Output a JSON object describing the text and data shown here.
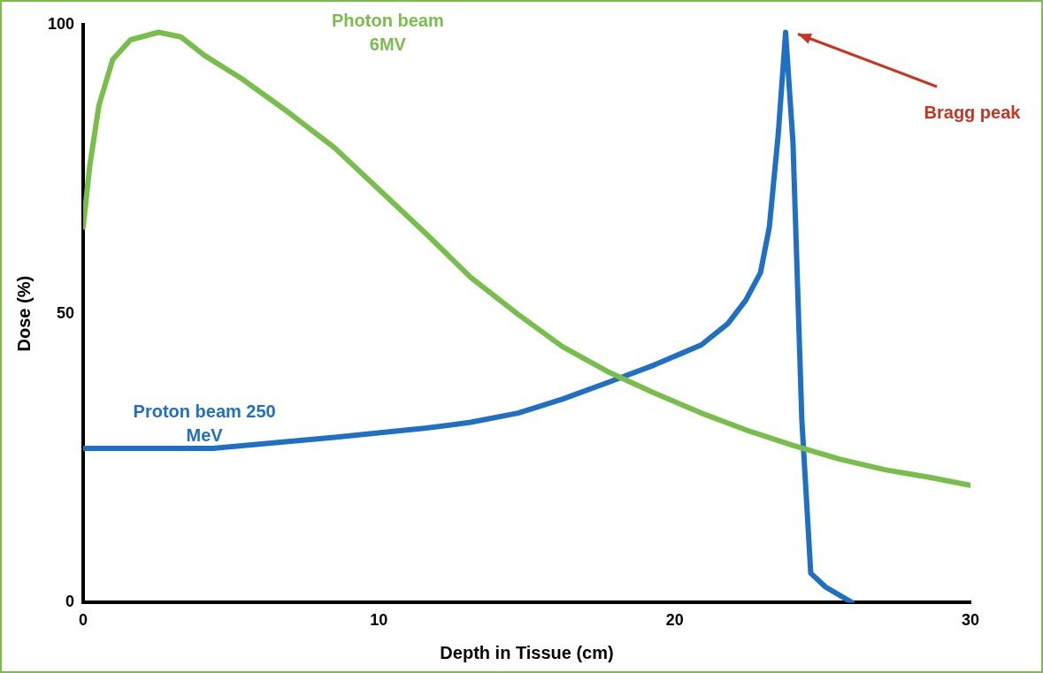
{
  "chart_data": {
    "type": "line",
    "xlabel": "Depth in Tissue (cm)",
    "ylabel": "Dose (%)",
    "xlim": [
      0,
      30
    ],
    "ylim": [
      0,
      100
    ],
    "xticks": [
      0,
      10,
      20,
      30
    ],
    "yticks": [
      0,
      50,
      100
    ],
    "grid": false,
    "legend": false,
    "series": [
      {
        "name": "Photon beam 6MV",
        "color": "#78be4a",
        "x": [
          0,
          0.22,
          0.53,
          1.0,
          1.6,
          2.55,
          3.3,
          4.1,
          5.35,
          6.9,
          8.5,
          10,
          11.6,
          13.1,
          14.7,
          16.2,
          17.8,
          19.3,
          20.9,
          22.4,
          24,
          25.6,
          27.1,
          28.7,
          30
        ],
        "values": [
          65,
          75.5,
          86,
          94,
          97.4,
          98.7,
          97.9,
          94.7,
          90.7,
          85,
          78.7,
          71.5,
          63.8,
          56.3,
          49.9,
          44.3,
          39.8,
          36.3,
          32.8,
          29.9,
          27.2,
          24.8,
          23,
          21.6,
          20.3
        ]
      },
      {
        "name": "Proton beam 250 MeV",
        "color": "#1f6fc5",
        "x": [
          0,
          4.4,
          8.5,
          11.6,
          13.1,
          14.7,
          16.2,
          17.8,
          19.3,
          20.9,
          21.8,
          22.4,
          22.9,
          23.2,
          23.5,
          23.75,
          24,
          24.3,
          24.6,
          25.1,
          26
        ],
        "values": [
          26.7,
          26.7,
          28.6,
          30.2,
          31.2,
          32.8,
          35.2,
          38.2,
          41.1,
          44.6,
          48.3,
          52.3,
          57.1,
          65,
          81,
          98.7,
          79.5,
          31.5,
          5.1,
          2.7,
          0
        ]
      }
    ],
    "annotations": [
      "Bragg peak"
    ]
  }
}
